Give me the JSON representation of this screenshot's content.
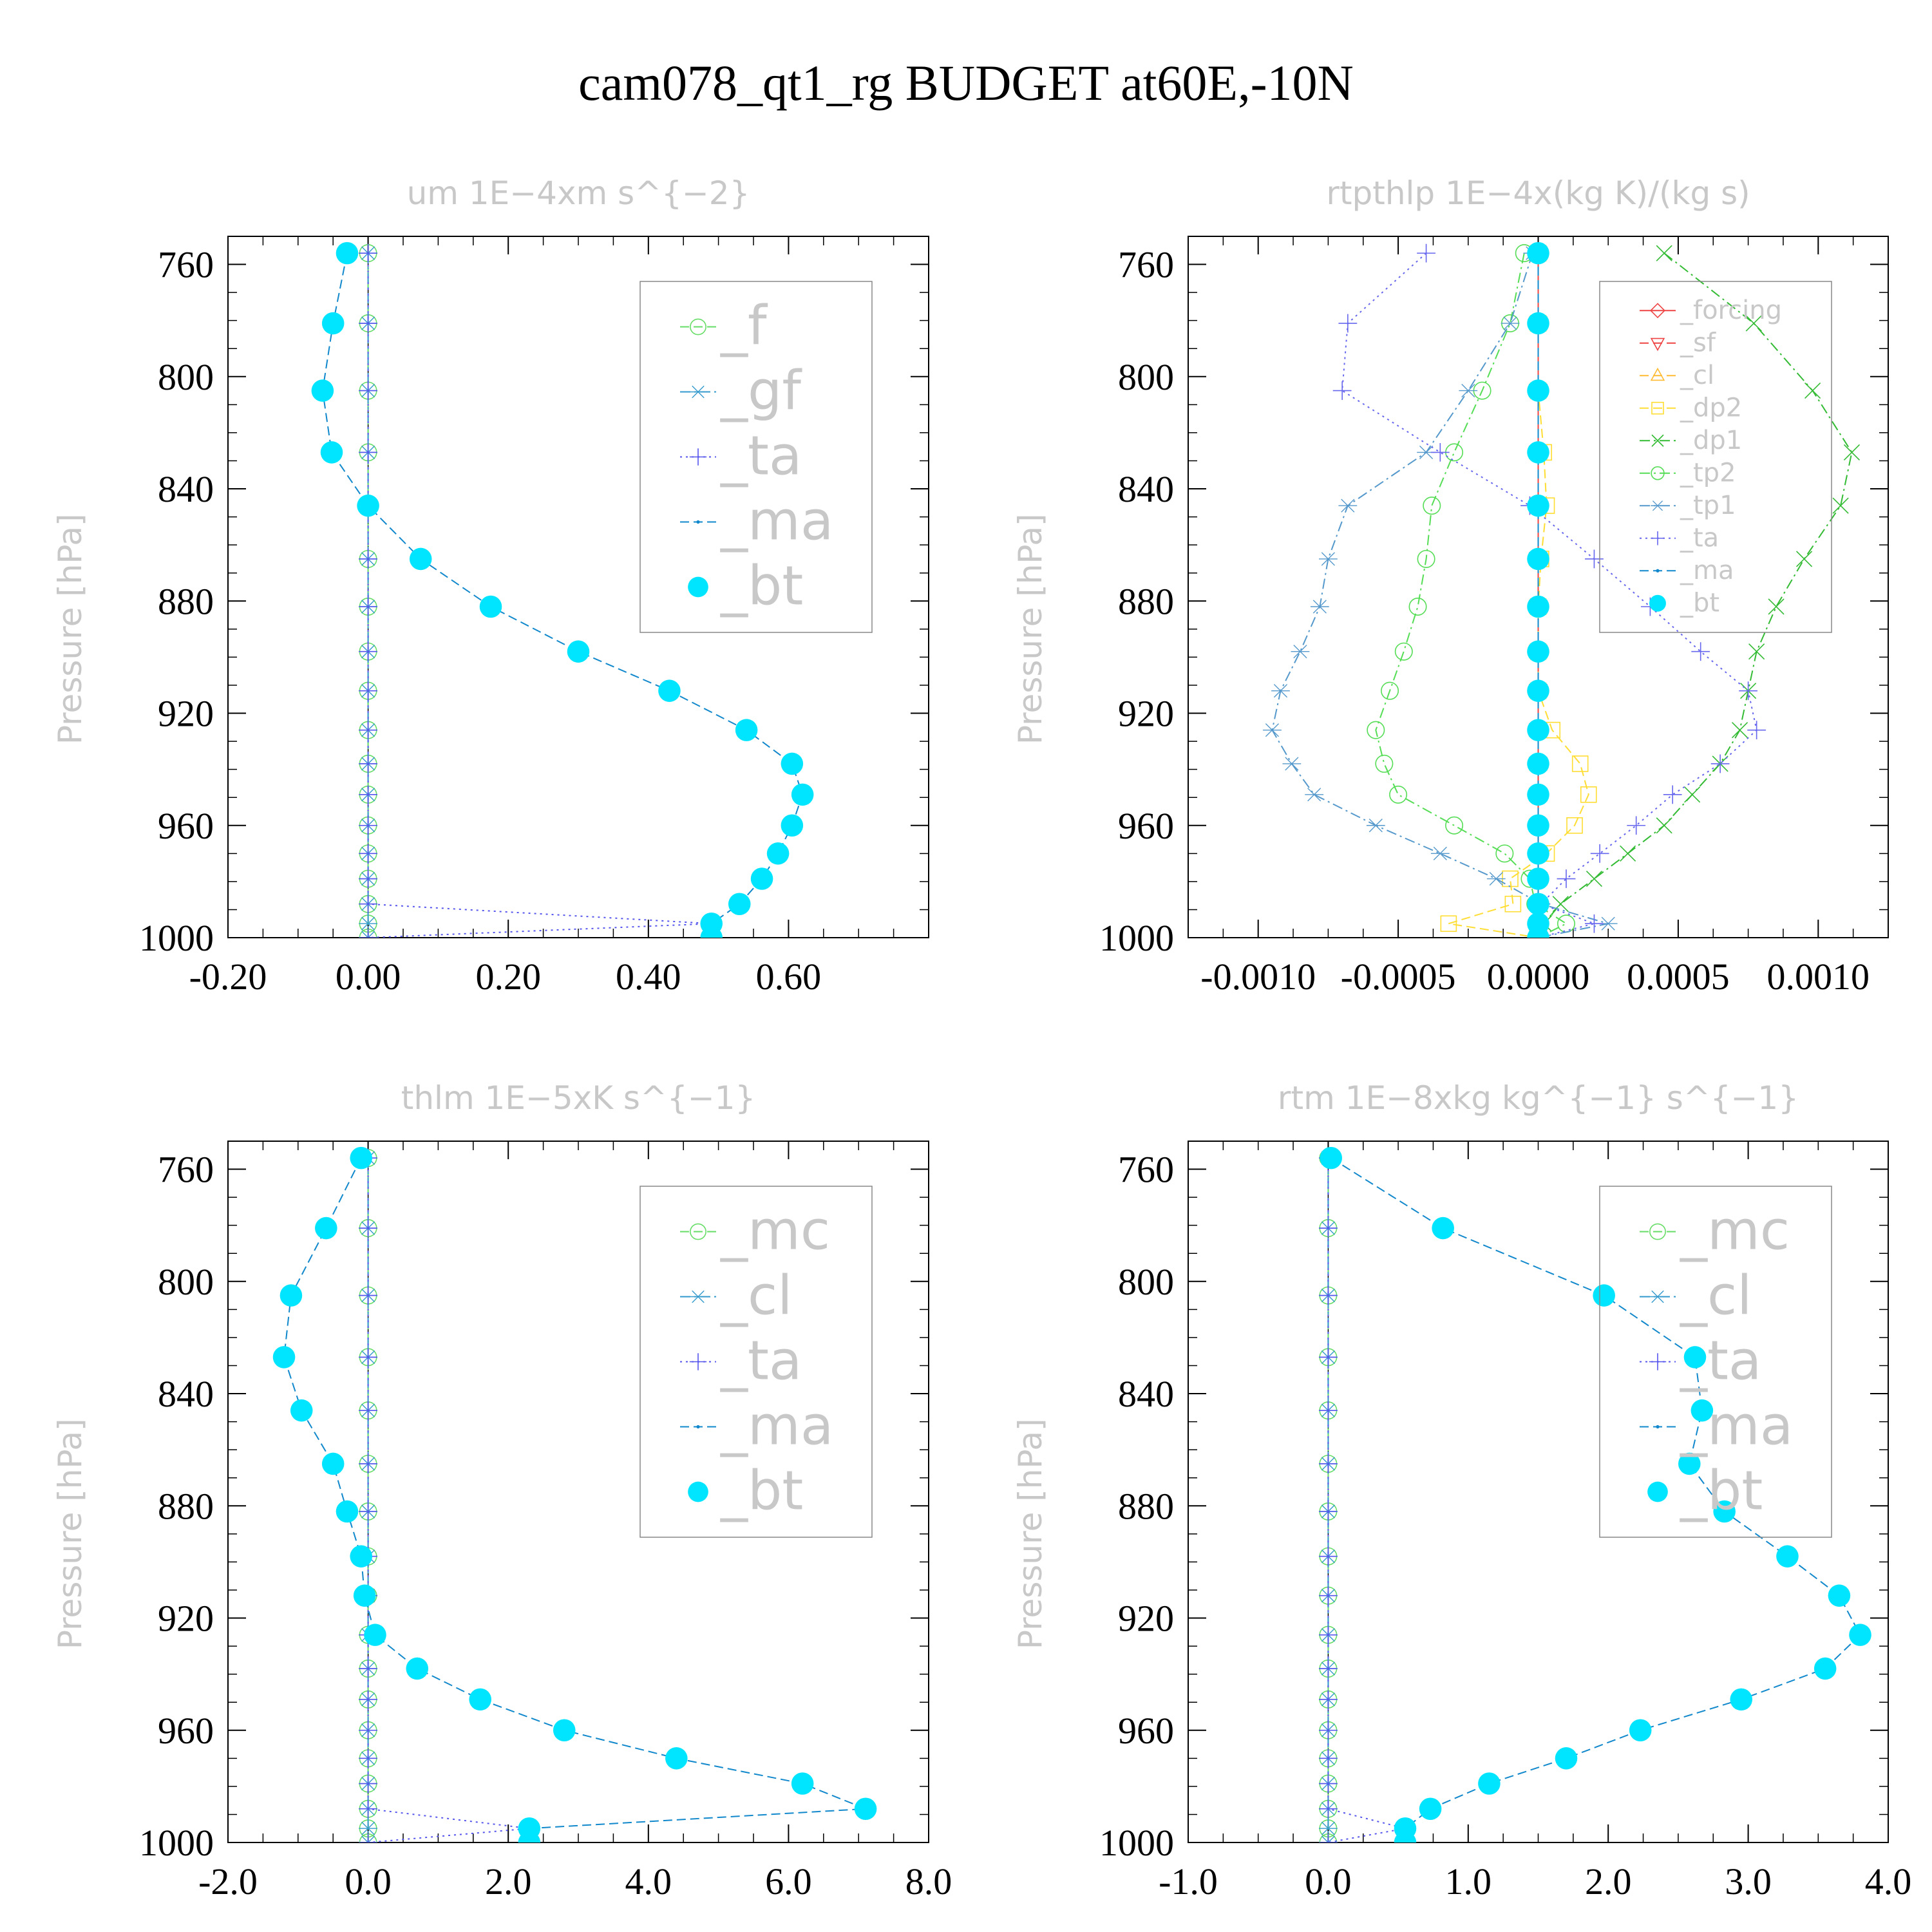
{
  "figure_title": "cam078_qt1_rg  BUDGET at60E,-10N",
  "chart_data": [
    {
      "type": "line",
      "title": "um   1E−4xm s^{−2}",
      "ylabel": "Pressure [hPa]",
      "xlim": [
        -0.2,
        0.8
      ],
      "ylim": [
        1000,
        750
      ],
      "xticks": [
        -0.2,
        0.0,
        0.2,
        0.4,
        0.6
      ],
      "xtick_labels": [
        "-0.20",
        "0.00",
        "0.20",
        "0.40",
        "0.60"
      ],
      "yticks": [
        760,
        800,
        840,
        880,
        920,
        960,
        1000
      ],
      "ytick_labels": [
        "760",
        "800",
        "840",
        "880",
        "920",
        "960",
        "1000"
      ],
      "pressure": [
        756,
        781,
        805,
        827,
        846,
        865,
        882,
        898,
        912,
        926,
        938,
        949,
        960,
        970,
        979,
        988,
        995,
        1000
      ],
      "legend": {
        "position": "top-right",
        "large": true
      },
      "series": [
        {
          "name": "_f",
          "color": "#66dd66",
          "marker": "circle",
          "dash": "dashed",
          "values": [
            0,
            0,
            0,
            0,
            0,
            0,
            0,
            0,
            0,
            0,
            0,
            0,
            0,
            0,
            0,
            0,
            0,
            0
          ]
        },
        {
          "name": "_gf",
          "color": "#3399cc",
          "marker": "star",
          "dash": "dashdot",
          "values": [
            0,
            0,
            0,
            0,
            0,
            0,
            0,
            0,
            0,
            0,
            0,
            0,
            0,
            0,
            0,
            0,
            0,
            0
          ]
        },
        {
          "name": "_ta",
          "color": "#5555ee",
          "marker": "plus",
          "dash": "dotted",
          "values": [
            0,
            0,
            0,
            0,
            0,
            0,
            0,
            0,
            0,
            0,
            0,
            0,
            0,
            0,
            0,
            0,
            0.49,
            0
          ]
        },
        {
          "name": "_ma",
          "color": "#1188cc",
          "marker": "dot",
          "dash": "dashed",
          "values": [
            -0.03,
            -0.05,
            -0.065,
            -0.052,
            0.0,
            0.075,
            0.175,
            0.3,
            0.43,
            0.54,
            0.605,
            0.62,
            0.605,
            0.585,
            0.562,
            0.53,
            0.49,
            0.49
          ]
        },
        {
          "name": "_bt",
          "color": "#00e5ff",
          "marker": "filled",
          "dash": "none",
          "values": [
            -0.03,
            -0.05,
            -0.065,
            -0.052,
            0.0,
            0.075,
            0.175,
            0.3,
            0.43,
            0.54,
            0.605,
            0.62,
            0.605,
            0.585,
            0.562,
            0.53,
            0.49,
            0.49
          ]
        }
      ]
    },
    {
      "type": "line",
      "title": "rtpthlp   1E−4x(kg K)/(kg s)",
      "ylabel": "Pressure [hPa]",
      "xlim": [
        -0.00125,
        0.00125
      ],
      "ylim": [
        1000,
        750
      ],
      "xticks": [
        -0.001,
        -0.0005,
        0.0,
        0.0005,
        0.001
      ],
      "xtick_labels": [
        "-0.0010",
        "-0.0005",
        "0.0000",
        "0.0005",
        "0.0010"
      ],
      "yticks": [
        760,
        800,
        840,
        880,
        920,
        960,
        1000
      ],
      "ytick_labels": [
        "760",
        "800",
        "840",
        "880",
        "920",
        "960",
        "1000"
      ],
      "pressure": [
        756,
        781,
        805,
        827,
        846,
        865,
        882,
        898,
        912,
        926,
        938,
        949,
        960,
        970,
        979,
        988,
        995,
        1000
      ],
      "legend": {
        "position": "top-right",
        "large": false
      },
      "series": [
        {
          "name": "_forcing",
          "color": "#ee4444",
          "marker": "diamond",
          "dash": "solid",
          "values": [
            0,
            0,
            0,
            0,
            0,
            0,
            0,
            0,
            0,
            0,
            0,
            0,
            0,
            0,
            0,
            0,
            0,
            0
          ]
        },
        {
          "name": "_sf",
          "color": "#ee4444",
          "marker": "tri-down",
          "dash": "dashed",
          "values": [
            0,
            0,
            0,
            0,
            0,
            0,
            0,
            0,
            0,
            0,
            0,
            0,
            0,
            0,
            0,
            0,
            0,
            0
          ]
        },
        {
          "name": "_cl",
          "color": "#ffbb33",
          "marker": "tri-up",
          "dash": "dashed",
          "values": [
            0,
            0,
            0,
            0,
            0,
            0,
            0,
            0,
            0,
            0,
            0,
            0,
            0,
            0,
            0,
            0,
            0,
            0
          ]
        },
        {
          "name": "_dp2",
          "color": "#ffdd33",
          "marker": "square",
          "dash": "dashed",
          "values": [
            0,
            0,
            0,
            2e-05,
            3e-05,
            1e-05,
            0,
            0,
            0,
            5e-05,
            0.00015,
            0.00018,
            0.00013,
            3e-05,
            -0.0001,
            -9e-05,
            -0.00032,
            0
          ]
        },
        {
          "name": "_dp1",
          "color": "#33bb33",
          "marker": "x",
          "dash": "dashdot",
          "values": [
            0.00045,
            0.00077,
            0.00098,
            0.00112,
            0.00108,
            0.00095,
            0.00085,
            0.00078,
            0.00075,
            0.00072,
            0.00065,
            0.00055,
            0.00045,
            0.00032,
            0.0002,
            8e-05,
            2e-05,
            0
          ]
        },
        {
          "name": "_tp2",
          "color": "#55dd55",
          "marker": "circle",
          "dash": "dashdot",
          "values": [
            -5e-05,
            -0.0001,
            -0.0002,
            -0.0003,
            -0.00038,
            -0.0004,
            -0.00043,
            -0.00048,
            -0.00053,
            -0.00058,
            -0.00055,
            -0.0005,
            -0.0003,
            -0.00012,
            -3e-05,
            -1e-05,
            0.0001,
            0
          ]
        },
        {
          "name": "_tp1",
          "color": "#5599cc",
          "marker": "star",
          "dash": "dashdot",
          "values": [
            -2e-05,
            -0.0001,
            -0.00025,
            -0.0004,
            -0.00068,
            -0.00075,
            -0.00078,
            -0.00085,
            -0.00092,
            -0.00095,
            -0.00088,
            -0.0008,
            -0.00058,
            -0.00035,
            -0.00015,
            1e-05,
            0.00025,
            0
          ]
        },
        {
          "name": "_ta",
          "color": "#6666ee",
          "marker": "plus",
          "dash": "dotted",
          "values": [
            -0.0004,
            -0.00068,
            -0.0007,
            -0.00035,
            -3e-05,
            0.0002,
            0.0004,
            0.00058,
            0.00075,
            0.00078,
            0.00065,
            0.00048,
            0.00035,
            0.00022,
            0.0001,
            1e-05,
            0.0002,
            0
          ]
        },
        {
          "name": "_ma",
          "color": "#1188cc",
          "marker": "dot",
          "dash": "dashed",
          "values": [
            0,
            0,
            0,
            0,
            0,
            0,
            0,
            0,
            0,
            0,
            0,
            0,
            0,
            0,
            0,
            0,
            0,
            0
          ]
        },
        {
          "name": "_bt",
          "color": "#00e5ff",
          "marker": "filled",
          "dash": "none",
          "values": [
            0,
            0,
            0,
            0,
            0,
            0,
            0,
            0,
            0,
            0,
            0,
            0,
            0,
            0,
            0,
            0,
            0,
            0
          ]
        }
      ]
    },
    {
      "type": "line",
      "title": "thlm   1E−5xK s^{−1}",
      "ylabel": "Pressure [hPa]",
      "xlim": [
        -2.0,
        8.0
      ],
      "ylim": [
        1000,
        750
      ],
      "xticks": [
        -2.0,
        0.0,
        2.0,
        4.0,
        6.0,
        8.0
      ],
      "xtick_labels": [
        "-2.0",
        "0.0",
        "2.0",
        "4.0",
        "6.0",
        "8.0"
      ],
      "yticks": [
        760,
        800,
        840,
        880,
        920,
        960,
        1000
      ],
      "ytick_labels": [
        "760",
        "800",
        "840",
        "880",
        "920",
        "960",
        "1000"
      ],
      "pressure": [
        756,
        781,
        805,
        827,
        846,
        865,
        882,
        898,
        912,
        926,
        938,
        949,
        960,
        970,
        979,
        988,
        995,
        1000
      ],
      "legend": {
        "position": "top-right",
        "large": true
      },
      "series": [
        {
          "name": "_mc",
          "color": "#66dd66",
          "marker": "circle",
          "dash": "dashed",
          "values": [
            0,
            0,
            0,
            0,
            0,
            0,
            0,
            0,
            0,
            0,
            0,
            0,
            0,
            0,
            0,
            0,
            0,
            0
          ]
        },
        {
          "name": "_cl",
          "color": "#3399cc",
          "marker": "star",
          "dash": "dashdot",
          "values": [
            0,
            0,
            0,
            0,
            0,
            0,
            0,
            0,
            0,
            0,
            0,
            0,
            0,
            0,
            0,
            0,
            0,
            0
          ]
        },
        {
          "name": "_ta",
          "color": "#5555ee",
          "marker": "plus",
          "dash": "dotted",
          "values": [
            0,
            0,
            0,
            0,
            0,
            0,
            0,
            0,
            0,
            0,
            0,
            0,
            0,
            0,
            0,
            0,
            2.3,
            0
          ]
        },
        {
          "name": "_ma",
          "color": "#1188cc",
          "marker": "dot",
          "dash": "dashed",
          "values": [
            -0.1,
            -0.6,
            -1.1,
            -1.2,
            -0.95,
            -0.5,
            -0.3,
            -0.1,
            -0.05,
            0.1,
            0.7,
            1.6,
            2.8,
            4.4,
            6.2,
            7.1,
            2.3,
            2.3
          ]
        },
        {
          "name": "_bt",
          "color": "#00e5ff",
          "marker": "filled",
          "dash": "none",
          "values": [
            -0.1,
            -0.6,
            -1.1,
            -1.2,
            -0.95,
            -0.5,
            -0.3,
            -0.1,
            -0.05,
            0.1,
            0.7,
            1.6,
            2.8,
            4.4,
            6.2,
            7.1,
            2.3,
            2.3
          ]
        }
      ]
    },
    {
      "type": "line",
      "title": "rtm   1E−8xkg kg^{−1} s^{−1}",
      "ylabel": "Pressure [hPa]",
      "xlim": [
        -1.0,
        4.0
      ],
      "ylim": [
        1000,
        750
      ],
      "xticks": [
        -1.0,
        0.0,
        1.0,
        2.0,
        3.0,
        4.0
      ],
      "xtick_labels": [
        "-1.0",
        "0.0",
        "1.0",
        "2.0",
        "3.0",
        "4.0"
      ],
      "yticks": [
        760,
        800,
        840,
        880,
        920,
        960,
        1000
      ],
      "ytick_labels": [
        "760",
        "800",
        "840",
        "880",
        "920",
        "960",
        "1000"
      ],
      "pressure": [
        756,
        781,
        805,
        827,
        846,
        865,
        882,
        898,
        912,
        926,
        938,
        949,
        960,
        970,
        979,
        988,
        995,
        1000
      ],
      "legend": {
        "position": "top-right",
        "large": true
      },
      "series": [
        {
          "name": "_mc",
          "color": "#66dd66",
          "marker": "circle",
          "dash": "dashed",
          "values": [
            0,
            0,
            0,
            0,
            0,
            0,
            0,
            0,
            0,
            0,
            0,
            0,
            0,
            0,
            0,
            0,
            0,
            0
          ]
        },
        {
          "name": "_cl",
          "color": "#3399cc",
          "marker": "star",
          "dash": "dashdot",
          "values": [
            0,
            0,
            0,
            0,
            0,
            0,
            0,
            0,
            0,
            0,
            0,
            0,
            0,
            0,
            0,
            0,
            0,
            0
          ]
        },
        {
          "name": "_ta",
          "color": "#5555ee",
          "marker": "plus",
          "dash": "dotted",
          "values": [
            0,
            0,
            0,
            0,
            0,
            0,
            0,
            0,
            0,
            0,
            0,
            0,
            0,
            0,
            0,
            0,
            0.55,
            0
          ]
        },
        {
          "name": "_ma",
          "color": "#1188cc",
          "marker": "dot",
          "dash": "dashed",
          "values": [
            0.02,
            0.82,
            1.97,
            2.62,
            2.67,
            2.58,
            2.83,
            3.28,
            3.65,
            3.8,
            3.55,
            2.95,
            2.23,
            1.7,
            1.15,
            0.73,
            0.55,
            0.55
          ]
        },
        {
          "name": "_bt",
          "color": "#00e5ff",
          "marker": "filled",
          "dash": "none",
          "values": [
            0.02,
            0.82,
            1.97,
            2.62,
            2.67,
            2.58,
            2.83,
            3.28,
            3.65,
            3.8,
            3.55,
            2.95,
            2.23,
            1.7,
            1.15,
            0.73,
            0.55,
            0.55
          ]
        }
      ]
    }
  ]
}
